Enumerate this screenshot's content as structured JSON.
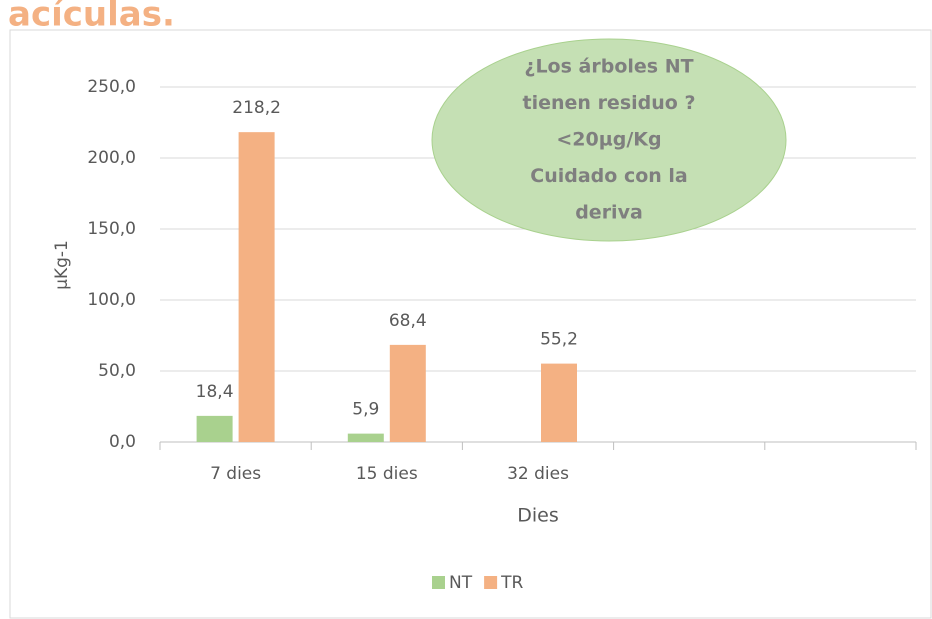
{
  "chart_data": {
    "type": "bar",
    "title": "acículas.",
    "ylabel": "µKg-1",
    "xlabel": "Dies",
    "annotation": [
      "¿Los árboles NT",
      "tienen residuo ?",
      "<20µg/Kg",
      "Cuidado con la",
      "deriva"
    ],
    "categories": [
      "7 dies",
      "15 dies",
      "32 dies",
      null,
      null
    ],
    "series": [
      {
        "name": "NT",
        "color": "#a9d18e",
        "values": [
          18.4,
          5.9,
          null,
          null,
          null
        ],
        "value_labels": [
          "18,4",
          "5,9",
          null,
          null,
          null
        ]
      },
      {
        "name": "TR",
        "color": "#f4b183",
        "values": [
          218.2,
          68.4,
          55.2,
          null,
          null
        ],
        "value_labels": [
          "218,2",
          "68,4",
          "55,2",
          null,
          null
        ]
      }
    ],
    "ylim": [
      0,
      250
    ],
    "yticks": [
      {
        "value": 0,
        "label": "0,0"
      },
      {
        "value": 50,
        "label": "50,0"
      },
      {
        "value": 100,
        "label": "100,0"
      },
      {
        "value": 150,
        "label": "150,0"
      },
      {
        "value": 200,
        "label": "200,0"
      },
      {
        "value": 250,
        "label": "250,0"
      }
    ],
    "grid": true,
    "legend": "bottom"
  }
}
